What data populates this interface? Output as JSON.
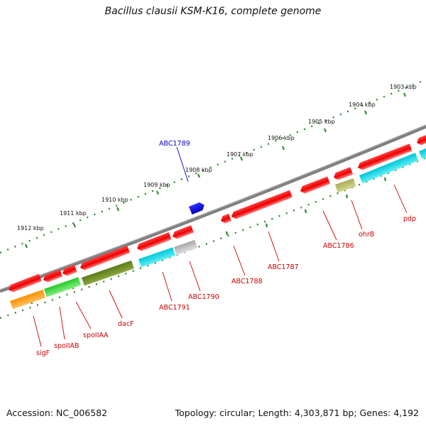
{
  "title": "Bacillus clausii KSM-K16, complete genome",
  "accession": "Accession: NC_006582",
  "topology": "Topology: circular; Length: 4,303,871 bp; Genes: 4,192",
  "colors": {
    "backbone": "#808080",
    "tick": "#2e8b2e",
    "cds_label": "#cc0000",
    "upper_label": "#0000cc"
  },
  "scale_labels": [
    "1903 kbp",
    "1904 kbp",
    "1905 kbp",
    "1906 kbp",
    "1907 kbp",
    "1908 kbp",
    "1909 kbp",
    "1910 kbp",
    "1911 kbp",
    "1912 kbp"
  ],
  "gene_labels": {
    "abc1789": "ABC1789",
    "pdp": "pdp",
    "ohrb": "ohrB",
    "abc1786": "ABC1786",
    "abc1787": "ABC1787",
    "abc1788": "ABC1788",
    "abc1790": "ABC1790",
    "abc1791": "ABC1791",
    "dacf": "dacF",
    "spoiiaa": "spoIIAA",
    "spoiiab": "spoIIAB",
    "sigf": "sigF"
  }
}
